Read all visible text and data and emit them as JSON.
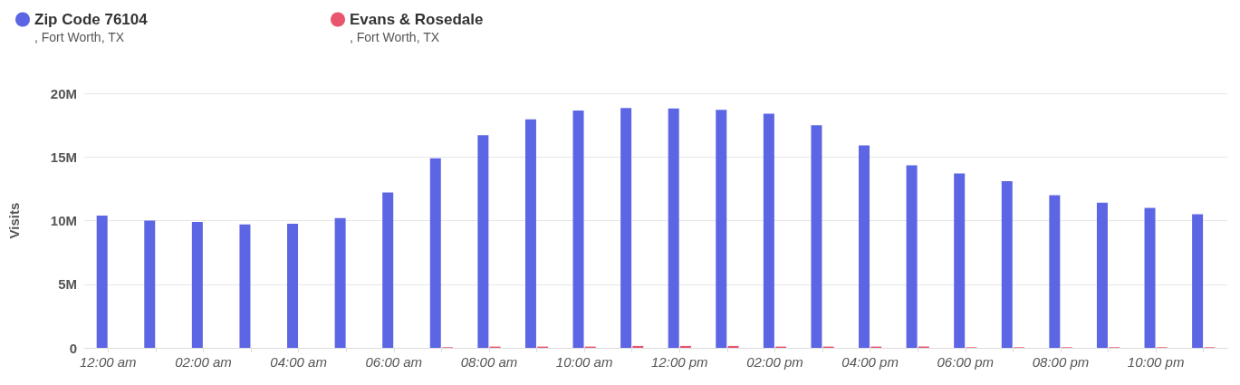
{
  "chart_data": {
    "type": "bar",
    "ylabel": "Visits",
    "categories": [
      "12:00 am",
      null,
      "02:00 am",
      null,
      "04:00 am",
      null,
      "06:00 am",
      null,
      "08:00 am",
      null,
      "10:00 am",
      null,
      "12:00 pm",
      null,
      "02:00 pm",
      null,
      "04:00 pm",
      null,
      "06:00 pm",
      null,
      "08:00 pm",
      null,
      "10:00 pm",
      null
    ],
    "series": [
      {
        "name": "Zip Code 76104",
        "color": "#5c65e3",
        "values": [
          10.4,
          10.0,
          9.9,
          9.7,
          9.75,
          10.2,
          12.2,
          14.9,
          16.7,
          17.95,
          18.65,
          18.85,
          18.8,
          18.7,
          18.4,
          17.5,
          15.9,
          14.35,
          13.7,
          13.1,
          12.0,
          11.4,
          11.0,
          10.5
        ]
      },
      {
        "name": "Evans & Rosedale",
        "color": "#e8566e",
        "values": [
          null,
          null,
          null,
          null,
          null,
          null,
          null,
          0.05,
          0.1,
          0.1,
          0.1,
          0.15,
          0.15,
          0.15,
          0.1,
          0.1,
          0.1,
          0.1,
          0.05,
          0.05,
          0.05,
          0.05,
          0.05,
          0.05
        ]
      }
    ],
    "annotations": [
      ", Fort Worth, TX",
      ", Fort Worth, TX"
    ],
    "ylim": [
      0,
      20
    ],
    "yticks": [
      {
        "value": 0,
        "label": "0"
      },
      {
        "value": 5,
        "label": "5M"
      },
      {
        "value": 10,
        "label": "10M"
      },
      {
        "value": 15,
        "label": "15M"
      },
      {
        "value": 20,
        "label": "20M"
      }
    ],
    "grid": "y",
    "legend": "top left"
  }
}
